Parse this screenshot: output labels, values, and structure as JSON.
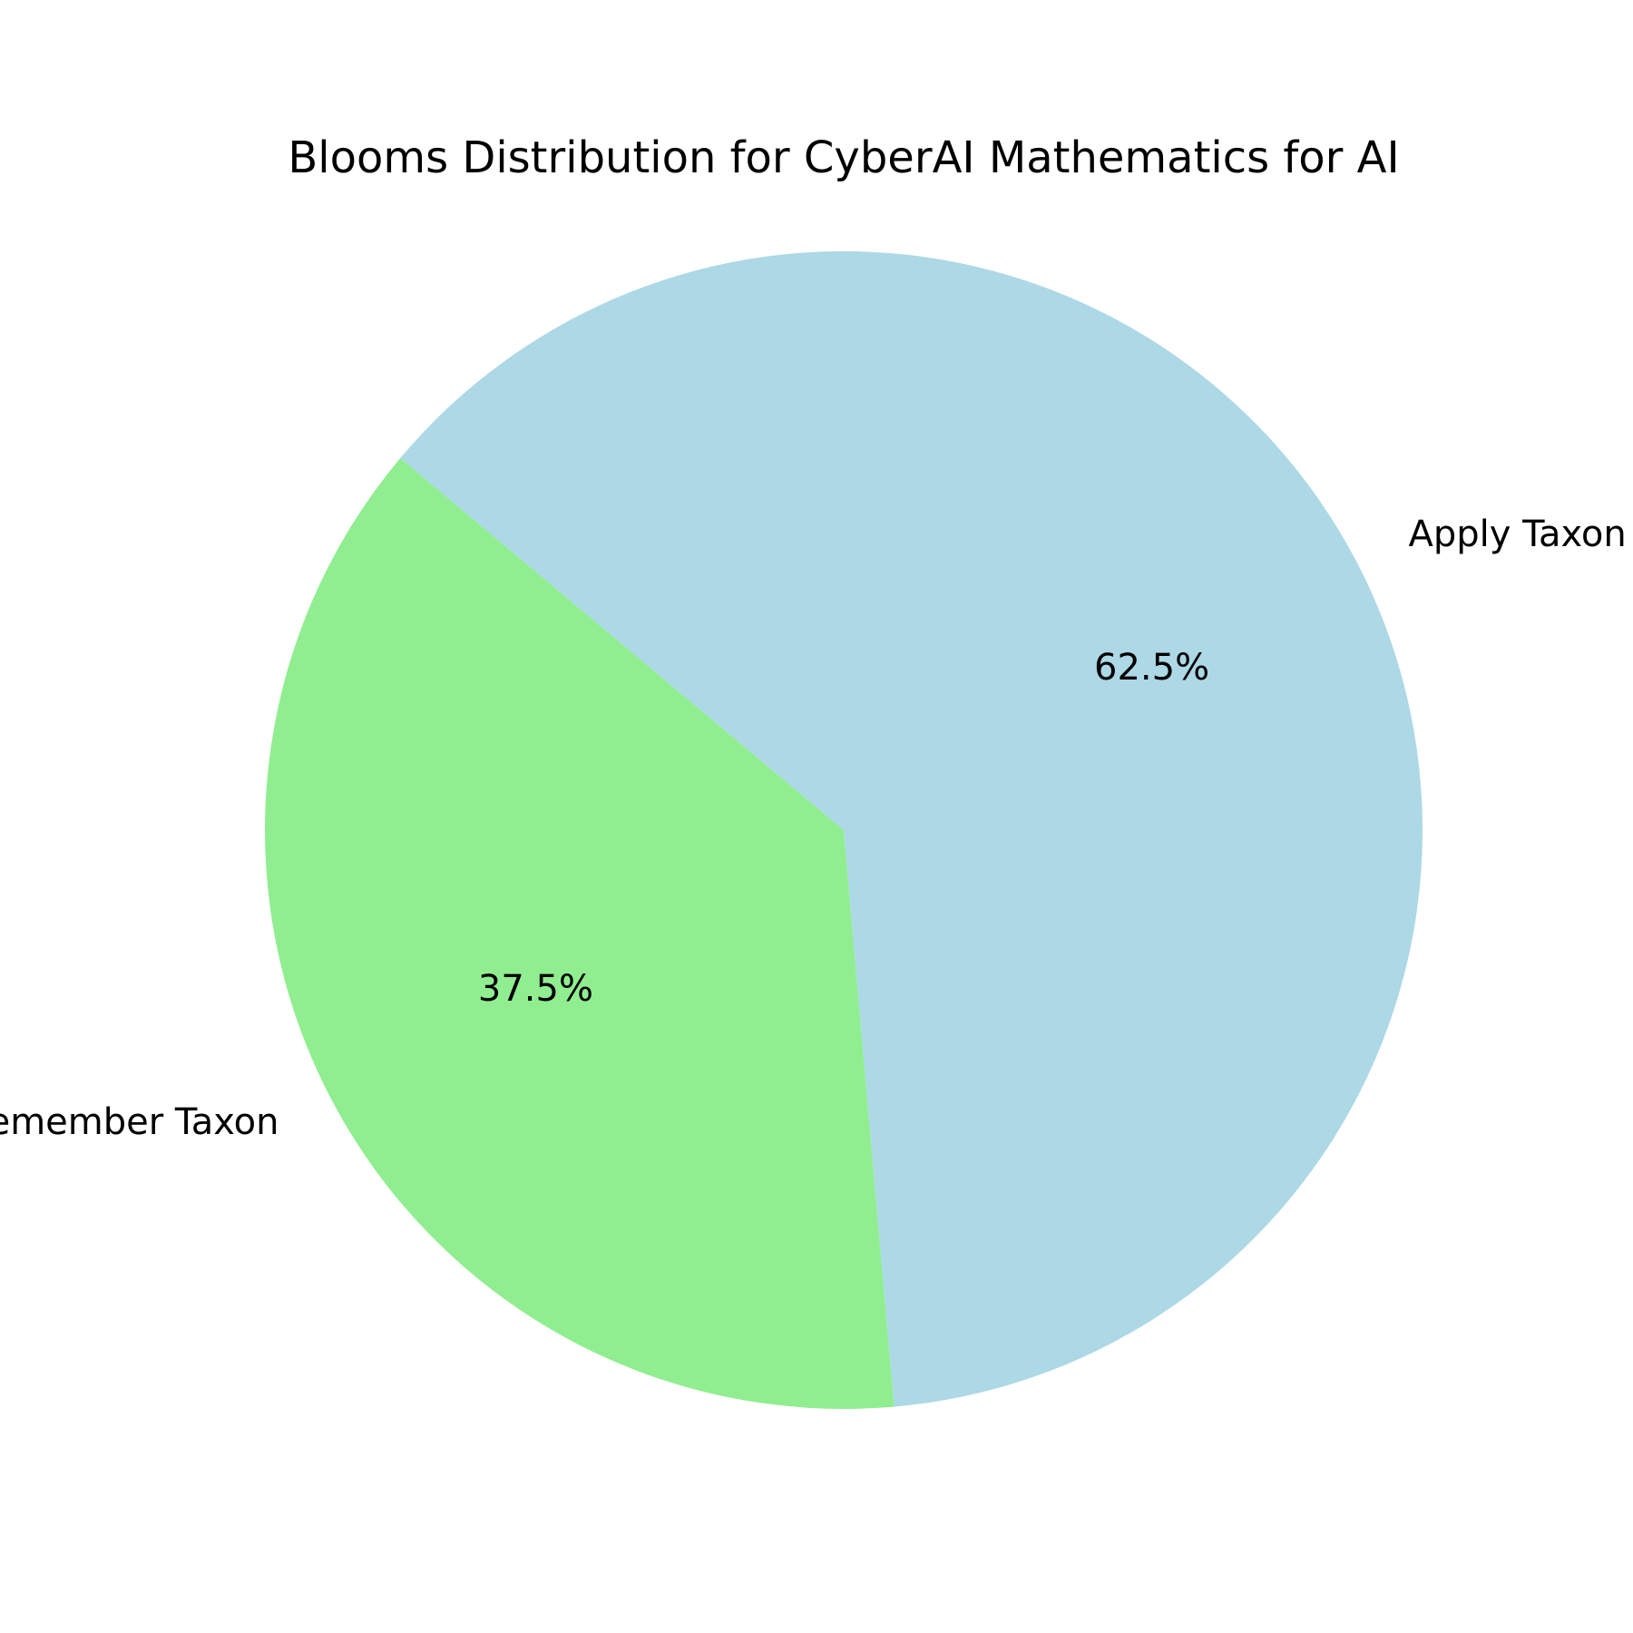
{
  "chart_data": {
    "type": "pie",
    "title": "Blooms Distribution for CyberAI Mathematics for AI",
    "start_angle_deg": 140,
    "direction": "counterclockwise",
    "slices": [
      {
        "label": "Remember Taxon",
        "value": 37.5,
        "pct_label": "37.5%",
        "color": "#90EE90"
      },
      {
        "label": "Apply Taxon",
        "value": 62.5,
        "pct_label": "62.5%",
        "color": "#ADD8E6"
      }
    ]
  }
}
